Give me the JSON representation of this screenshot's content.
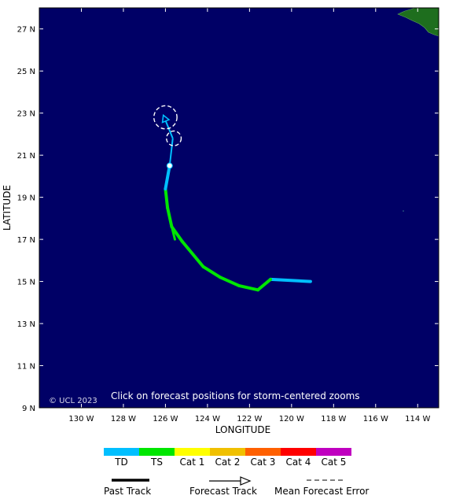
{
  "map": {
    "lon_range": [
      -132,
      -113
    ],
    "lat_range": [
      9,
      28
    ],
    "background_color": "#000066",
    "land_color": "#1e6e1e",
    "copyright": "© UCL 2023",
    "instruction": "Click on forecast positions for storm-centered zooms",
    "x_axis_title": "LONGITUDE",
    "y_axis_title": "LATITUDE",
    "lat_ticks": [
      {
        "value": 27,
        "label": "27 N"
      },
      {
        "value": 25,
        "label": "25 N"
      },
      {
        "value": 23,
        "label": "23 N"
      },
      {
        "value": 21,
        "label": "21 N"
      },
      {
        "value": 19,
        "label": "19 N"
      },
      {
        "value": 17,
        "label": "17 N"
      },
      {
        "value": 15,
        "label": "15 N"
      },
      {
        "value": 13,
        "label": "13 N"
      },
      {
        "value": 11,
        "label": "11 N"
      },
      {
        "value": 9,
        "label": "9 N"
      }
    ],
    "lon_ticks": [
      {
        "value": -130,
        "label": "130 W"
      },
      {
        "value": -128,
        "label": "128 W"
      },
      {
        "value": -126,
        "label": "126 W"
      },
      {
        "value": -124,
        "label": "124 W"
      },
      {
        "value": -122,
        "label": "122 W"
      },
      {
        "value": -120,
        "label": "120 W"
      },
      {
        "value": -118,
        "label": "118 W"
      },
      {
        "value": -116,
        "label": "116 W"
      },
      {
        "value": -114,
        "label": "114 W"
      }
    ]
  },
  "track": {
    "past": [
      {
        "lon": -119.1,
        "lat": 15.0,
        "cat": "TD"
      },
      {
        "lon": -121.0,
        "lat": 15.1,
        "cat": "TD"
      },
      {
        "lon": -121.6,
        "lat": 14.6,
        "cat": "TS"
      },
      {
        "lon": -122.5,
        "lat": 14.8,
        "cat": "TS"
      },
      {
        "lon": -123.4,
        "lat": 15.2,
        "cat": "TS"
      },
      {
        "lon": -124.2,
        "lat": 15.7,
        "cat": "TS"
      },
      {
        "lon": -125.2,
        "lat": 16.9,
        "cat": "TS"
      },
      {
        "lon": -125.7,
        "lat": 17.6,
        "cat": "TS"
      },
      {
        "lon": -125.9,
        "lat": 18.5,
        "cat": "TS"
      },
      {
        "lon": -126.0,
        "lat": 19.4,
        "cat": "TS"
      },
      {
        "lon": -125.8,
        "lat": 20.5,
        "cat": "TD"
      }
    ],
    "past_hook": [
      {
        "lon": -125.7,
        "lat": 17.6
      },
      {
        "lon": -125.55,
        "lat": 17.0
      }
    ],
    "forecast": [
      {
        "lon": -125.8,
        "lat": 20.5,
        "cat": "TD"
      },
      {
        "lon": -125.65,
        "lat": 21.8,
        "cat": "TD"
      },
      {
        "lon": -126.1,
        "lat": 22.9,
        "cat": "TD"
      }
    ],
    "error_circles": [
      {
        "lon": -125.6,
        "lat": 21.8,
        "radius_deg": 0.35
      },
      {
        "lon": -126.0,
        "lat": 22.8,
        "radius_deg": 0.55
      }
    ]
  },
  "legend": {
    "categories": [
      {
        "label": "TD",
        "color": "#00bfff"
      },
      {
        "label": "TS",
        "color": "#00e600"
      },
      {
        "label": "Cat 1",
        "color": "#ffff00"
      },
      {
        "label": "Cat 2",
        "color": "#f0c000"
      },
      {
        "label": "Cat 3",
        "color": "#ff6000"
      },
      {
        "label": "Cat 4",
        "color": "#ff0000"
      },
      {
        "label": "Cat 5",
        "color": "#c000c0"
      }
    ],
    "past_track_label": "Past Track",
    "forecast_track_label": "Forecast Track",
    "error_label": "Mean Forecast Error"
  }
}
